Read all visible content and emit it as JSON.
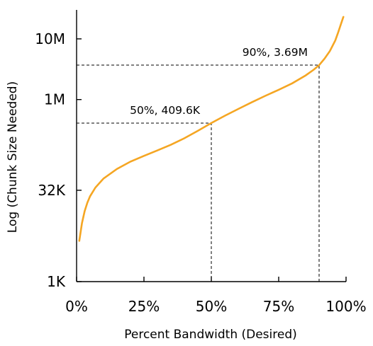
{
  "chart_data": {
    "type": "line",
    "title": "",
    "xlabel": "Percent Bandwidth (Desired)",
    "ylabel": "Log (Chunk Size Needed)",
    "y_scale": "log",
    "xlim": [
      0,
      100
    ],
    "ylim": [
      1000,
      30000000
    ],
    "x_ticks": [
      {
        "value": 0,
        "label": "0%"
      },
      {
        "value": 25,
        "label": "25%"
      },
      {
        "value": 50,
        "label": "50%"
      },
      {
        "value": 75,
        "label": "75%"
      },
      {
        "value": 100,
        "label": "100%"
      }
    ],
    "y_ticks": [
      {
        "value": 1000,
        "label": "1K"
      },
      {
        "value": 32000,
        "label": "32K"
      },
      {
        "value": 1000000,
        "label": "1M"
      },
      {
        "value": 10000000,
        "label": "10M"
      }
    ],
    "series": [
      {
        "color": "#f5a623",
        "points": [
          [
            1,
            4700
          ],
          [
            2,
            9200
          ],
          [
            3,
            14500
          ],
          [
            4,
            20000
          ],
          [
            5,
            25500
          ],
          [
            7,
            35500
          ],
          [
            10,
            50000
          ],
          [
            15,
            72000
          ],
          [
            20,
            95000
          ],
          [
            25,
            118000
          ],
          [
            30,
            145000
          ],
          [
            35,
            180000
          ],
          [
            40,
            230000
          ],
          [
            45,
            305000
          ],
          [
            50,
            409600
          ],
          [
            55,
            540000
          ],
          [
            60,
            700000
          ],
          [
            65,
            900000
          ],
          [
            70,
            1150000
          ],
          [
            75,
            1450000
          ],
          [
            80,
            1850000
          ],
          [
            85,
            2500000
          ],
          [
            88,
            3100000
          ],
          [
            90,
            3690000
          ],
          [
            92,
            4700000
          ],
          [
            94,
            6300000
          ],
          [
            96,
            9400000
          ],
          [
            97,
            12500000
          ],
          [
            98,
            17000000
          ],
          [
            99,
            23000000
          ]
        ]
      }
    ],
    "annotations": [
      {
        "x": 50,
        "y": 409600,
        "text": "50%, 409.6K"
      },
      {
        "x": 90,
        "y": 3690000,
        "text": "90%, 3.69M"
      }
    ],
    "grid": false,
    "legend": "none"
  }
}
